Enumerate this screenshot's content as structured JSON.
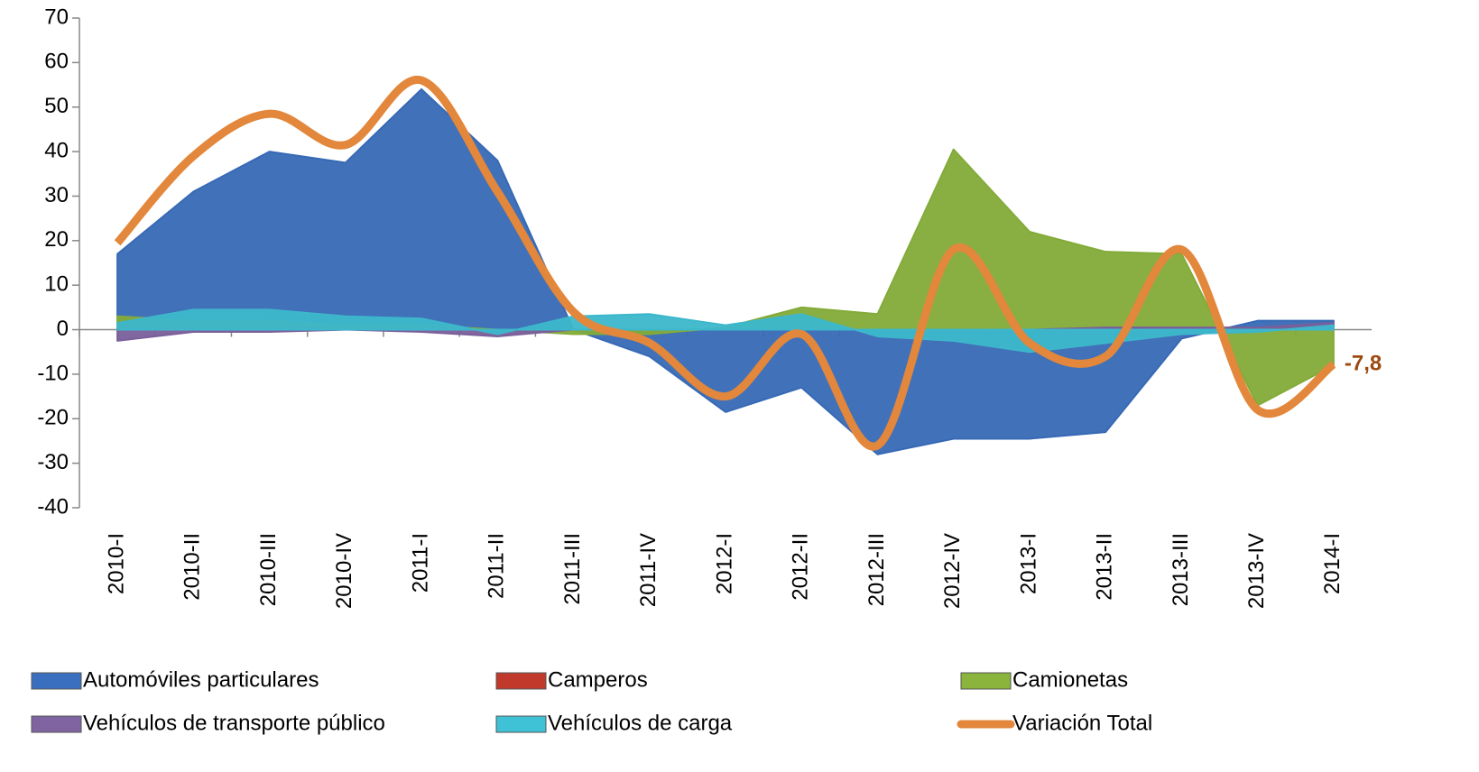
{
  "chart_data": {
    "type": "area",
    "categories": [
      "2010-I",
      "2010-II",
      "2010-III",
      "2010-IV",
      "2011-I",
      "2011-II",
      "2011-III",
      "2011-IV",
      "2012-I",
      "2012-II",
      "2012-III",
      "2012-IV",
      "2013-I",
      "2013-II",
      "2013-III",
      "2013-IV",
      "2014-I"
    ],
    "series": [
      {
        "name": "Automóviles particulares",
        "color": "#3a6fbf",
        "values": [
          17,
          31,
          40,
          37.5,
          54,
          38,
          0,
          -6,
          -18.5,
          -13,
          -28,
          -24.5,
          -24.5,
          -23,
          -2,
          2,
          2
        ]
      },
      {
        "name": "Camperos",
        "color": "#c0392b",
        "values": [
          0,
          0,
          0,
          0,
          0,
          0,
          0,
          0,
          0,
          0,
          0,
          0,
          0,
          0,
          0,
          0,
          0
        ]
      },
      {
        "name": "Camionetas",
        "color": "#8ab43c",
        "values": [
          3,
          2,
          2,
          1,
          1,
          0,
          -1,
          -1,
          0.5,
          5,
          3.5,
          40.5,
          22,
          17.5,
          17,
          -17,
          -8
        ]
      },
      {
        "name": "Vehículos de transporte público",
        "color": "#8064a2",
        "values": [
          -2.5,
          -0.5,
          -0.5,
          0,
          -0.5,
          -1.5,
          0,
          0,
          0,
          0,
          0,
          0,
          0,
          0.5,
          0.5,
          0.5,
          1.5
        ]
      },
      {
        "name": "Vehículos de carga",
        "color": "#3fc1d6",
        "values": [
          1.5,
          4.5,
          4.5,
          3,
          2.5,
          -1,
          3,
          3.5,
          1,
          3.5,
          -1.5,
          -2.5,
          -5,
          -3,
          -1,
          -0.5,
          1
        ]
      },
      {
        "name": "Variación Total",
        "color": "#e2873b",
        "type": "line",
        "values": [
          19.5,
          39,
          48.5,
          41.5,
          56,
          31,
          4,
          -3,
          -15,
          -1,
          -26,
          18,
          -3,
          -6,
          18,
          -18,
          -7.8
        ],
        "value_labels": [
          null,
          null,
          null,
          null,
          null,
          null,
          null,
          null,
          null,
          null,
          null,
          null,
          null,
          null,
          null,
          null,
          "-7,8"
        ]
      }
    ],
    "ylim": [
      -40,
      70
    ],
    "yticks": [
      -40,
      -30,
      -20,
      -10,
      0,
      10,
      20,
      30,
      40,
      50,
      60,
      70
    ]
  }
}
